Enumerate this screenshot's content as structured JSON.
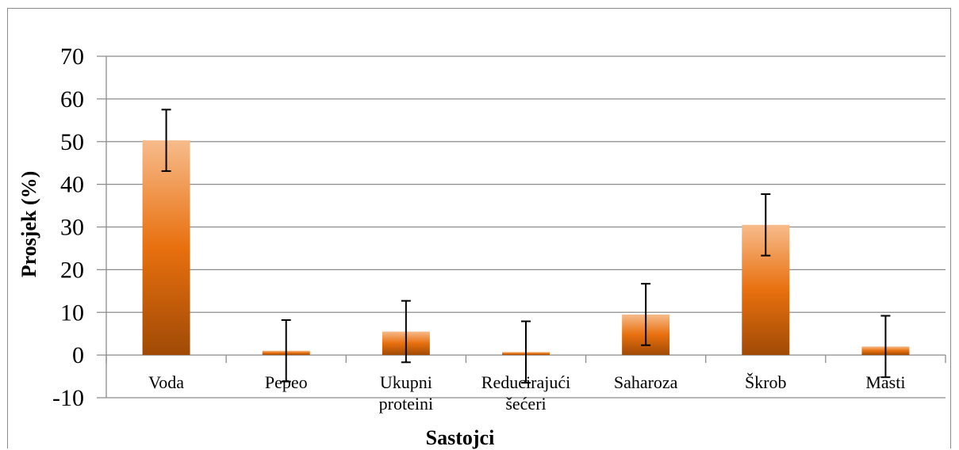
{
  "chart_data": {
    "type": "bar",
    "categories": [
      [
        "Voda"
      ],
      [
        "Pepeo"
      ],
      [
        "Ukupni",
        "proteini"
      ],
      [
        "Reducirajući",
        "šećeri"
      ],
      [
        "Saharoza"
      ],
      [
        "Škrob"
      ],
      [
        "Masti"
      ]
    ],
    "values": [
      50.3,
      1.0,
      5.5,
      0.7,
      9.5,
      30.5,
      2.0
    ],
    "error": [
      7.2,
      7.2,
      7.2,
      7.2,
      7.2,
      7.2,
      7.2
    ],
    "xlabel": "Sastojci",
    "ylabel": "Prosjek (%)",
    "ylim": [
      -10,
      70
    ],
    "yticks": [
      -10,
      0,
      10,
      20,
      30,
      40,
      50,
      60,
      70
    ],
    "grid": true,
    "legend": "none",
    "colors": {
      "bar_top": "#F7BB8B",
      "bar_mid": "#E8700E",
      "bar_bottom": "#A04A06",
      "grid": "#8c8c8c",
      "error_bar": "#000000"
    }
  }
}
